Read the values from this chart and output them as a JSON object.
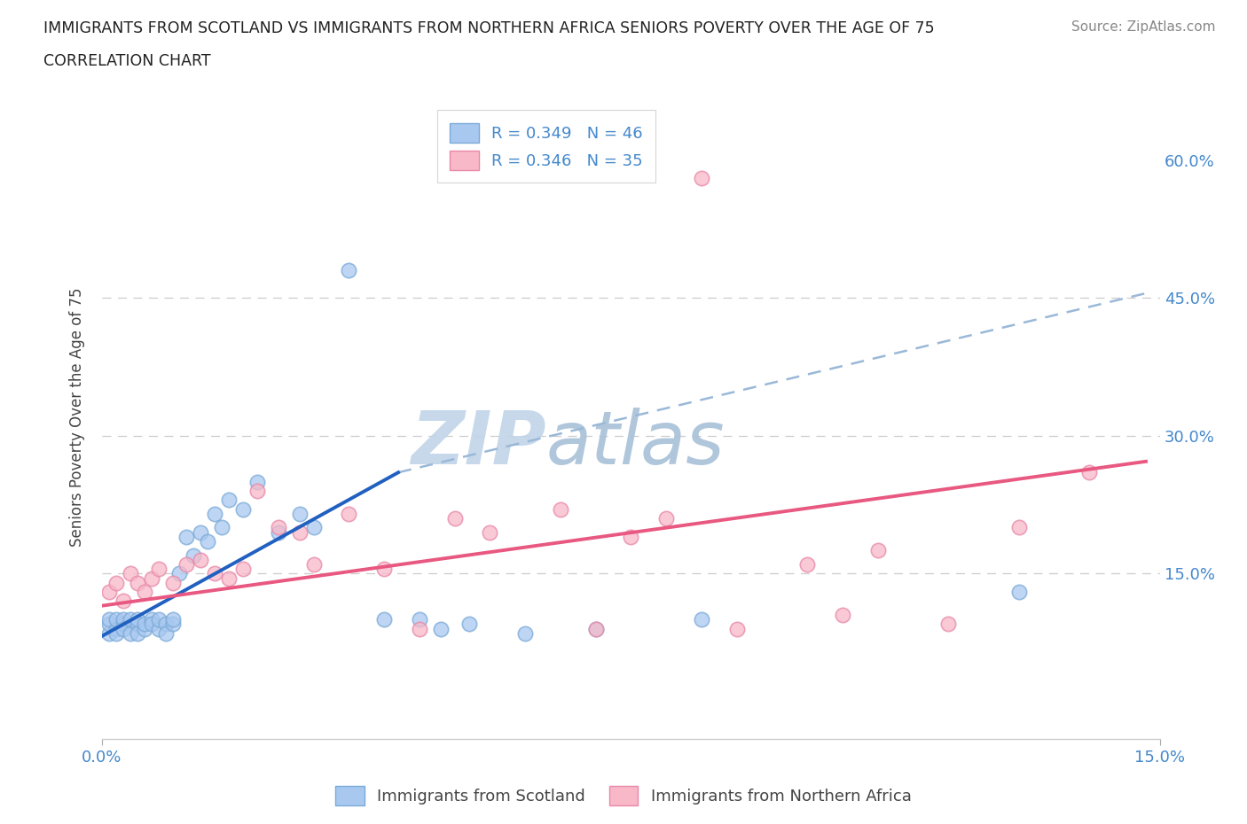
{
  "title": "IMMIGRANTS FROM SCOTLAND VS IMMIGRANTS FROM NORTHERN AFRICA SENIORS POVERTY OVER THE AGE OF 75",
  "subtitle": "CORRELATION CHART",
  "source": "Source: ZipAtlas.com",
  "ylabel": "Seniors Poverty Over the Age of 75",
  "scotland_R": 0.349,
  "scotland_N": 46,
  "n_africa_R": 0.346,
  "n_africa_N": 35,
  "scotland_color": "#a8c8f0",
  "scotland_edge_color": "#7aaad8",
  "n_africa_color": "#f8b8c8",
  "n_africa_edge_color": "#e888a8",
  "scotland_line_color": "#2060c0",
  "n_africa_line_color": "#e85880",
  "dashed_line_color": "#9ab8d8",
  "watermark_zip": "#c0d4e8",
  "watermark_atlas": "#a8c0d8",
  "title_color": "#222222",
  "axis_label_color": "#4488cc",
  "background_color": "#ffffff",
  "grid_color": "#cccccc",
  "xlim": [
    0.0,
    0.15
  ],
  "ylim": [
    -0.03,
    0.67
  ],
  "scotland_x": [
    0.001,
    0.001,
    0.001,
    0.002,
    0.002,
    0.002,
    0.003,
    0.003,
    0.003,
    0.004,
    0.004,
    0.005,
    0.005,
    0.005,
    0.006,
    0.006,
    0.007,
    0.007,
    0.008,
    0.008,
    0.009,
    0.009,
    0.01,
    0.01,
    0.011,
    0.012,
    0.013,
    0.014,
    0.015,
    0.016,
    0.017,
    0.018,
    0.02,
    0.022,
    0.025,
    0.028,
    0.03,
    0.035,
    0.04,
    0.045,
    0.048,
    0.052,
    0.06,
    0.07,
    0.085,
    0.13
  ],
  "scotland_y": [
    0.085,
    0.095,
    0.1,
    0.09,
    0.1,
    0.085,
    0.095,
    0.1,
    0.09,
    0.085,
    0.1,
    0.095,
    0.1,
    0.085,
    0.09,
    0.095,
    0.1,
    0.095,
    0.09,
    0.1,
    0.095,
    0.085,
    0.095,
    0.1,
    0.15,
    0.19,
    0.17,
    0.195,
    0.185,
    0.215,
    0.2,
    0.23,
    0.22,
    0.25,
    0.195,
    0.215,
    0.2,
    0.48,
    0.1,
    0.1,
    0.09,
    0.095,
    0.085,
    0.09,
    0.1,
    0.13
  ],
  "n_africa_x": [
    0.001,
    0.002,
    0.003,
    0.004,
    0.005,
    0.006,
    0.007,
    0.008,
    0.01,
    0.012,
    0.014,
    0.016,
    0.018,
    0.02,
    0.022,
    0.025,
    0.028,
    0.03,
    0.035,
    0.04,
    0.045,
    0.05,
    0.055,
    0.065,
    0.07,
    0.075,
    0.08,
    0.085,
    0.09,
    0.1,
    0.105,
    0.11,
    0.12,
    0.13,
    0.14
  ],
  "n_africa_y": [
    0.13,
    0.14,
    0.12,
    0.15,
    0.14,
    0.13,
    0.145,
    0.155,
    0.14,
    0.16,
    0.165,
    0.15,
    0.145,
    0.155,
    0.24,
    0.2,
    0.195,
    0.16,
    0.215,
    0.155,
    0.09,
    0.21,
    0.195,
    0.22,
    0.09,
    0.19,
    0.21,
    0.58,
    0.09,
    0.16,
    0.105,
    0.175,
    0.095,
    0.2,
    0.26
  ]
}
